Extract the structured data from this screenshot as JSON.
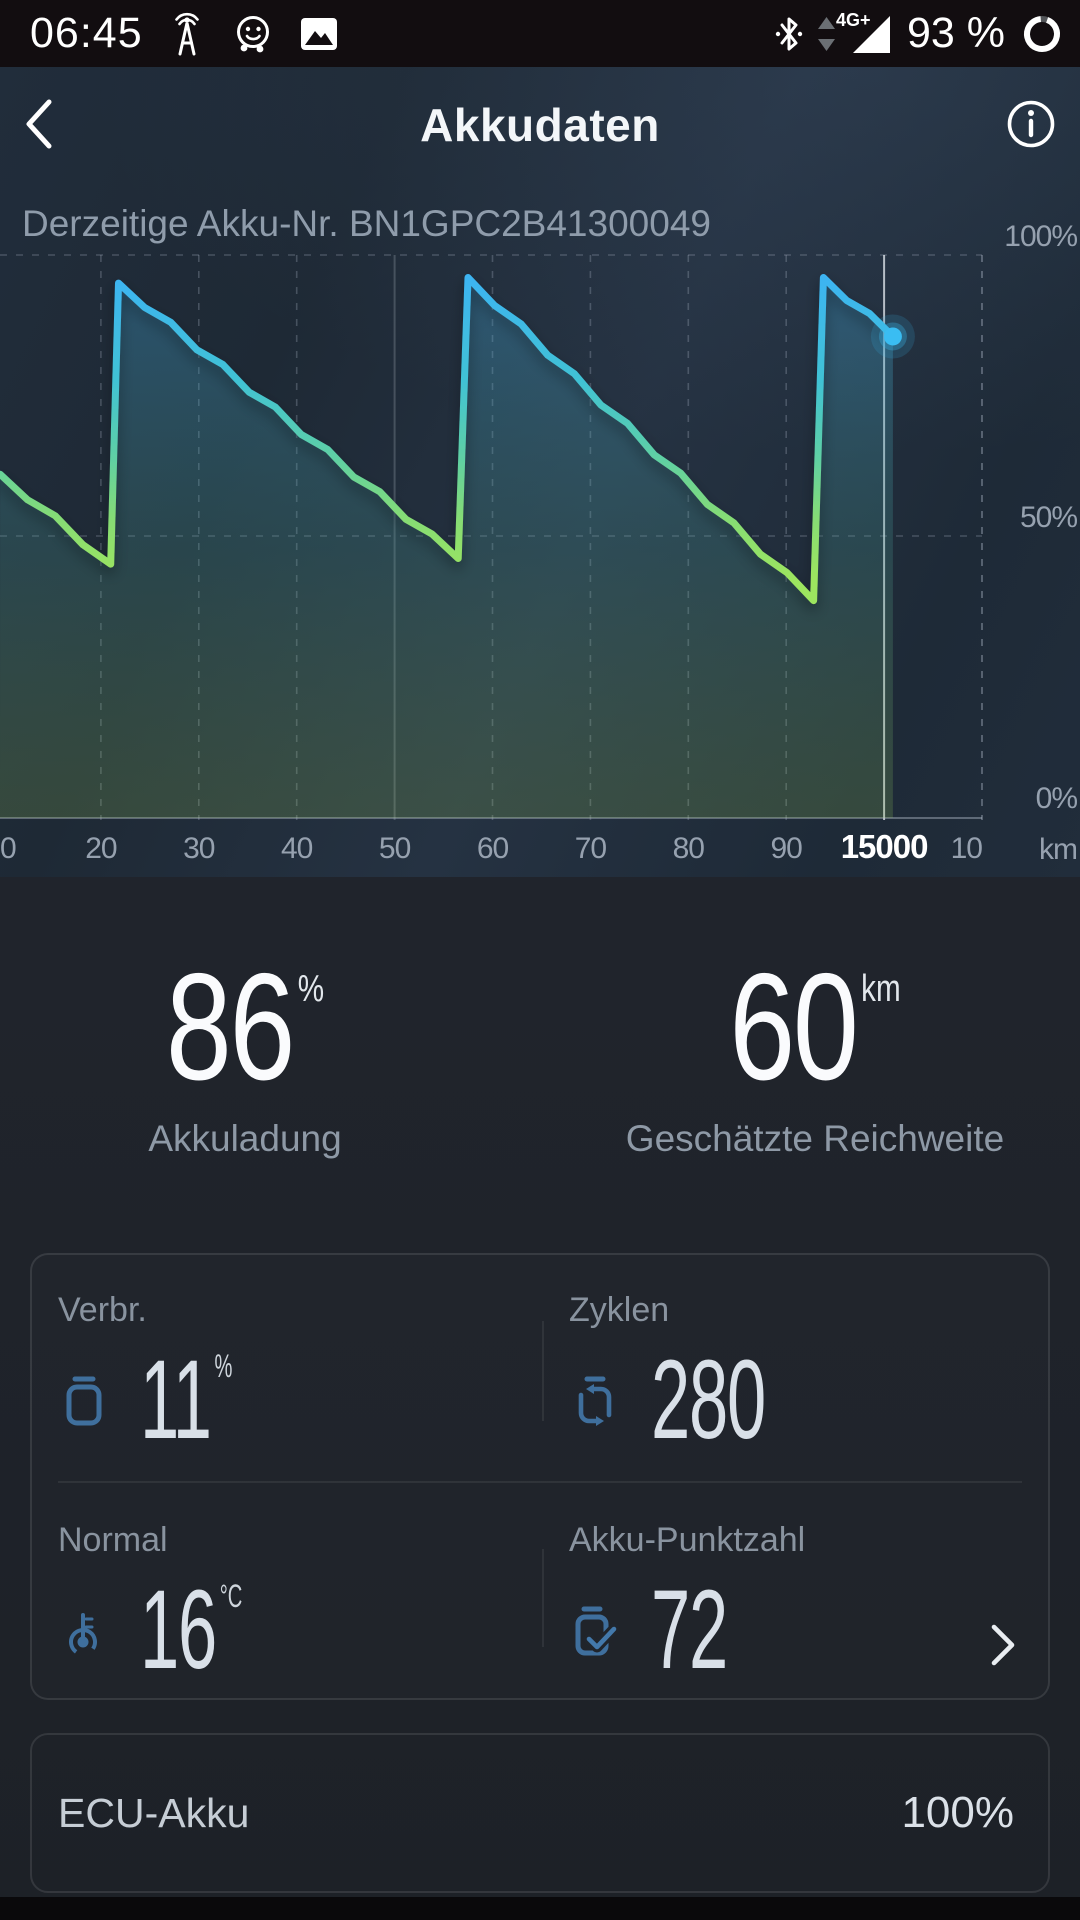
{
  "status_bar": {
    "time": "06:45",
    "network_label": "4G+",
    "battery_text": "93 %",
    "battery_ring_percent": 93,
    "icons": {
      "left": [
        "cell-tower",
        "waze",
        "gallery"
      ],
      "right": [
        "bluetooth",
        "data-transfer-arrows",
        "signal-strength",
        "battery-ring"
      ]
    }
  },
  "header": {
    "title": "Akkudaten",
    "back_icon": "back-chevron",
    "info_icon": "info-circle"
  },
  "battery_info": {
    "serial_text": "Derzeitige Akku-Nr. BN1GPC2B41300049"
  },
  "chart_data": {
    "type": "area",
    "title": "",
    "x_axis": {
      "unit": "km",
      "start_km": 14910,
      "end_km": 15010,
      "tick_step_km": 10
    },
    "y_axis": {
      "unit": "%",
      "min": 0,
      "max": 100,
      "ticks": [
        {
          "label": "100%",
          "pct": 100
        },
        {
          "label": "50%",
          "pct": 50
        },
        {
          "label": "0%",
          "pct": 0
        }
      ]
    },
    "x_ticks": [
      {
        "label": "0",
        "km": 14910
      },
      {
        "label": "20",
        "km": 14920
      },
      {
        "label": "30",
        "km": 14930
      },
      {
        "label": "40",
        "km": 14940
      },
      {
        "label": "50",
        "km": 14950,
        "solid": true
      },
      {
        "label": "60",
        "km": 14960
      },
      {
        "label": "70",
        "km": 14970
      },
      {
        "label": "80",
        "km": 14980
      },
      {
        "label": "90",
        "km": 14990
      },
      {
        "label": "15000",
        "km": 15000,
        "solid": true,
        "highlight": true
      },
      {
        "label": "10",
        "km": 15010
      }
    ],
    "series": [
      {
        "km": 14909.7,
        "pct": 61
      },
      {
        "km": 14921.0,
        "pct": 45
      },
      {
        "km": 14921.8,
        "pct": 95
      },
      {
        "km": 14956.5,
        "pct": 46
      },
      {
        "km": 14957.5,
        "pct": 96
      },
      {
        "km": 14992.8,
        "pct": 38.5
      },
      {
        "km": 14993.8,
        "pct": 96
      },
      {
        "km": 15000.9,
        "pct": 85.5
      }
    ],
    "current_point": {
      "km": 15001,
      "pct": 86
    },
    "legend": "none",
    "grid": "dashed",
    "line_colors": {
      "high": "#3db4f2",
      "mid": "#5fd0a4",
      "low": "#9de55f"
    }
  },
  "primary_stats": [
    {
      "value": "86",
      "unit": "%",
      "label": "Akkuladung"
    },
    {
      "value": "60",
      "unit": "km",
      "label": "Geschätzte Reichweite"
    }
  ],
  "detail_stats": [
    {
      "label": "Verbr.",
      "value": "11",
      "unit": "%",
      "icon": "battery-outline"
    },
    {
      "label": "Zyklen",
      "value": "280",
      "unit": "",
      "icon": "battery-cycle"
    },
    {
      "label": "Normal",
      "value": "16",
      "unit": "°C",
      "icon": "thermometer"
    },
    {
      "label": "Akku-Punktzahl",
      "value": "72",
      "unit": "",
      "icon": "battery-check"
    }
  ],
  "ecu": {
    "label": "ECU-Akku",
    "value": "100%"
  },
  "colors": {
    "accent_blue": "#3abdf2",
    "icon_blue": "#3f6f9d",
    "line_green": "#9de55f",
    "highlight": "#ffffff"
  }
}
